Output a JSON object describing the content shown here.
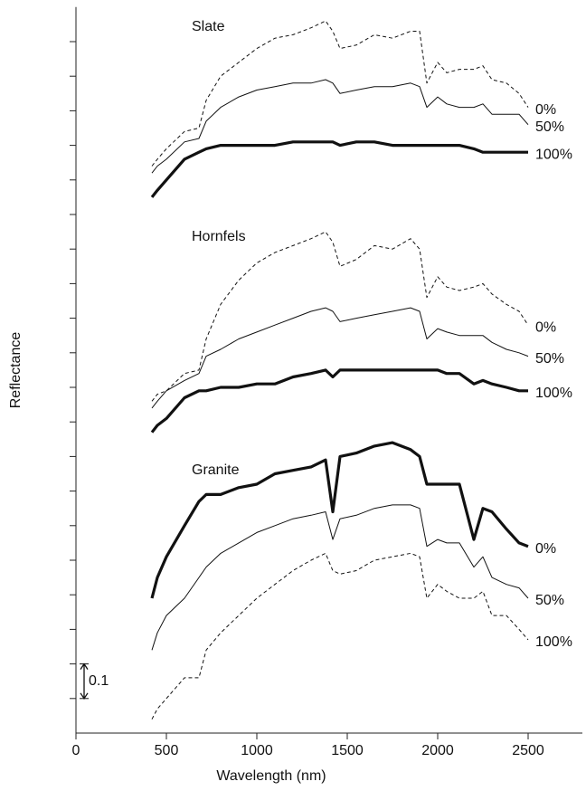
{
  "chart_data": {
    "type": "line",
    "x_label": "Wavelength (nm)",
    "y_label": "Reflectance",
    "xlim": [
      0,
      2800
    ],
    "xticks": [
      0,
      500,
      1000,
      1500,
      2000,
      2500
    ],
    "ylim": [
      0,
      2.1
    ],
    "yticks": [
      0.1,
      0.2,
      0.3,
      0.4,
      0.5,
      0.6,
      0.7,
      0.8,
      0.9,
      1.0,
      1.1,
      1.2,
      1.3,
      1.4,
      1.5,
      1.6,
      1.7,
      1.8,
      1.9,
      2.0
    ],
    "scale_bar": 0.1,
    "color": "#111111",
    "x": [
      420,
      450,
      500,
      600,
      680,
      720,
      800,
      900,
      1000,
      1100,
      1200,
      1300,
      1380,
      1420,
      1460,
      1550,
      1650,
      1750,
      1850,
      1900,
      1940,
      2000,
      2050,
      2120,
      2200,
      2250,
      2300,
      2380,
      2450,
      2500
    ],
    "groups": [
      {
        "name": "Slate",
        "series": [
          {
            "name": "0%",
            "style": "dashed",
            "values": [
              1.64,
              1.66,
              1.69,
              1.74,
              1.75,
              1.83,
              1.9,
              1.94,
              1.98,
              2.01,
              2.02,
              2.04,
              2.06,
              2.03,
              1.98,
              1.99,
              2.02,
              2.01,
              2.03,
              2.03,
              1.88,
              1.94,
              1.91,
              1.92,
              1.92,
              1.93,
              1.89,
              1.88,
              1.85,
              1.81
            ]
          },
          {
            "name": "50%",
            "style": "thin",
            "values": [
              1.62,
              1.64,
              1.66,
              1.71,
              1.72,
              1.77,
              1.81,
              1.84,
              1.86,
              1.87,
              1.88,
              1.88,
              1.89,
              1.88,
              1.85,
              1.86,
              1.87,
              1.87,
              1.88,
              1.87,
              1.81,
              1.84,
              1.82,
              1.81,
              1.81,
              1.82,
              1.79,
              1.79,
              1.79,
              1.76
            ]
          },
          {
            "name": "100%",
            "style": "thick",
            "values": [
              1.55,
              1.57,
              1.6,
              1.66,
              1.68,
              1.69,
              1.7,
              1.7,
              1.7,
              1.7,
              1.71,
              1.71,
              1.71,
              1.71,
              1.7,
              1.71,
              1.71,
              1.7,
              1.7,
              1.7,
              1.7,
              1.7,
              1.7,
              1.7,
              1.69,
              1.68,
              1.68,
              1.68,
              1.68,
              1.68
            ]
          }
        ]
      },
      {
        "name": "Hornfels",
        "series": [
          {
            "name": "0%",
            "style": "dashed",
            "values": [
              0.96,
              0.98,
              0.99,
              1.04,
              1.05,
              1.14,
              1.24,
              1.31,
              1.36,
              1.39,
              1.41,
              1.43,
              1.45,
              1.42,
              1.35,
              1.37,
              1.41,
              1.4,
              1.43,
              1.4,
              1.26,
              1.32,
              1.29,
              1.28,
              1.29,
              1.3,
              1.27,
              1.24,
              1.22,
              1.18
            ]
          },
          {
            "name": "50%",
            "style": "thin",
            "values": [
              0.94,
              0.96,
              0.99,
              1.02,
              1.04,
              1.09,
              1.11,
              1.14,
              1.16,
              1.18,
              1.2,
              1.22,
              1.23,
              1.22,
              1.19,
              1.2,
              1.21,
              1.22,
              1.23,
              1.22,
              1.14,
              1.17,
              1.16,
              1.15,
              1.15,
              1.15,
              1.13,
              1.11,
              1.1,
              1.09
            ]
          },
          {
            "name": "100%",
            "style": "thick",
            "values": [
              0.87,
              0.89,
              0.91,
              0.97,
              0.99,
              0.99,
              1.0,
              1.0,
              1.01,
              1.01,
              1.03,
              1.04,
              1.05,
              1.03,
              1.05,
              1.05,
              1.05,
              1.05,
              1.05,
              1.05,
              1.05,
              1.05,
              1.04,
              1.04,
              1.01,
              1.02,
              1.01,
              1.0,
              0.99,
              0.99
            ]
          }
        ]
      },
      {
        "name": "Granite",
        "series": [
          {
            "name": "0%",
            "style": "thick",
            "values": [
              0.39,
              0.45,
              0.51,
              0.6,
              0.67,
              0.69,
              0.69,
              0.71,
              0.72,
              0.75,
              0.76,
              0.77,
              0.79,
              0.64,
              0.8,
              0.81,
              0.83,
              0.84,
              0.82,
              0.8,
              0.72,
              0.72,
              0.72,
              0.72,
              0.56,
              0.65,
              0.64,
              0.59,
              0.55,
              0.54
            ]
          },
          {
            "name": "50%",
            "style": "thin",
            "values": [
              0.24,
              0.29,
              0.34,
              0.39,
              0.45,
              0.48,
              0.52,
              0.55,
              0.58,
              0.6,
              0.62,
              0.63,
              0.64,
              0.56,
              0.62,
              0.63,
              0.65,
              0.66,
              0.66,
              0.65,
              0.54,
              0.56,
              0.55,
              0.55,
              0.48,
              0.51,
              0.45,
              0.43,
              0.42,
              0.39
            ]
          },
          {
            "name": "100%",
            "style": "dashed",
            "values": [
              0.04,
              0.07,
              0.1,
              0.16,
              0.16,
              0.24,
              0.29,
              0.34,
              0.39,
              0.43,
              0.47,
              0.5,
              0.52,
              0.47,
              0.46,
              0.47,
              0.5,
              0.51,
              0.52,
              0.51,
              0.39,
              0.43,
              0.41,
              0.39,
              0.39,
              0.41,
              0.34,
              0.34,
              0.3,
              0.27
            ]
          }
        ]
      }
    ]
  }
}
